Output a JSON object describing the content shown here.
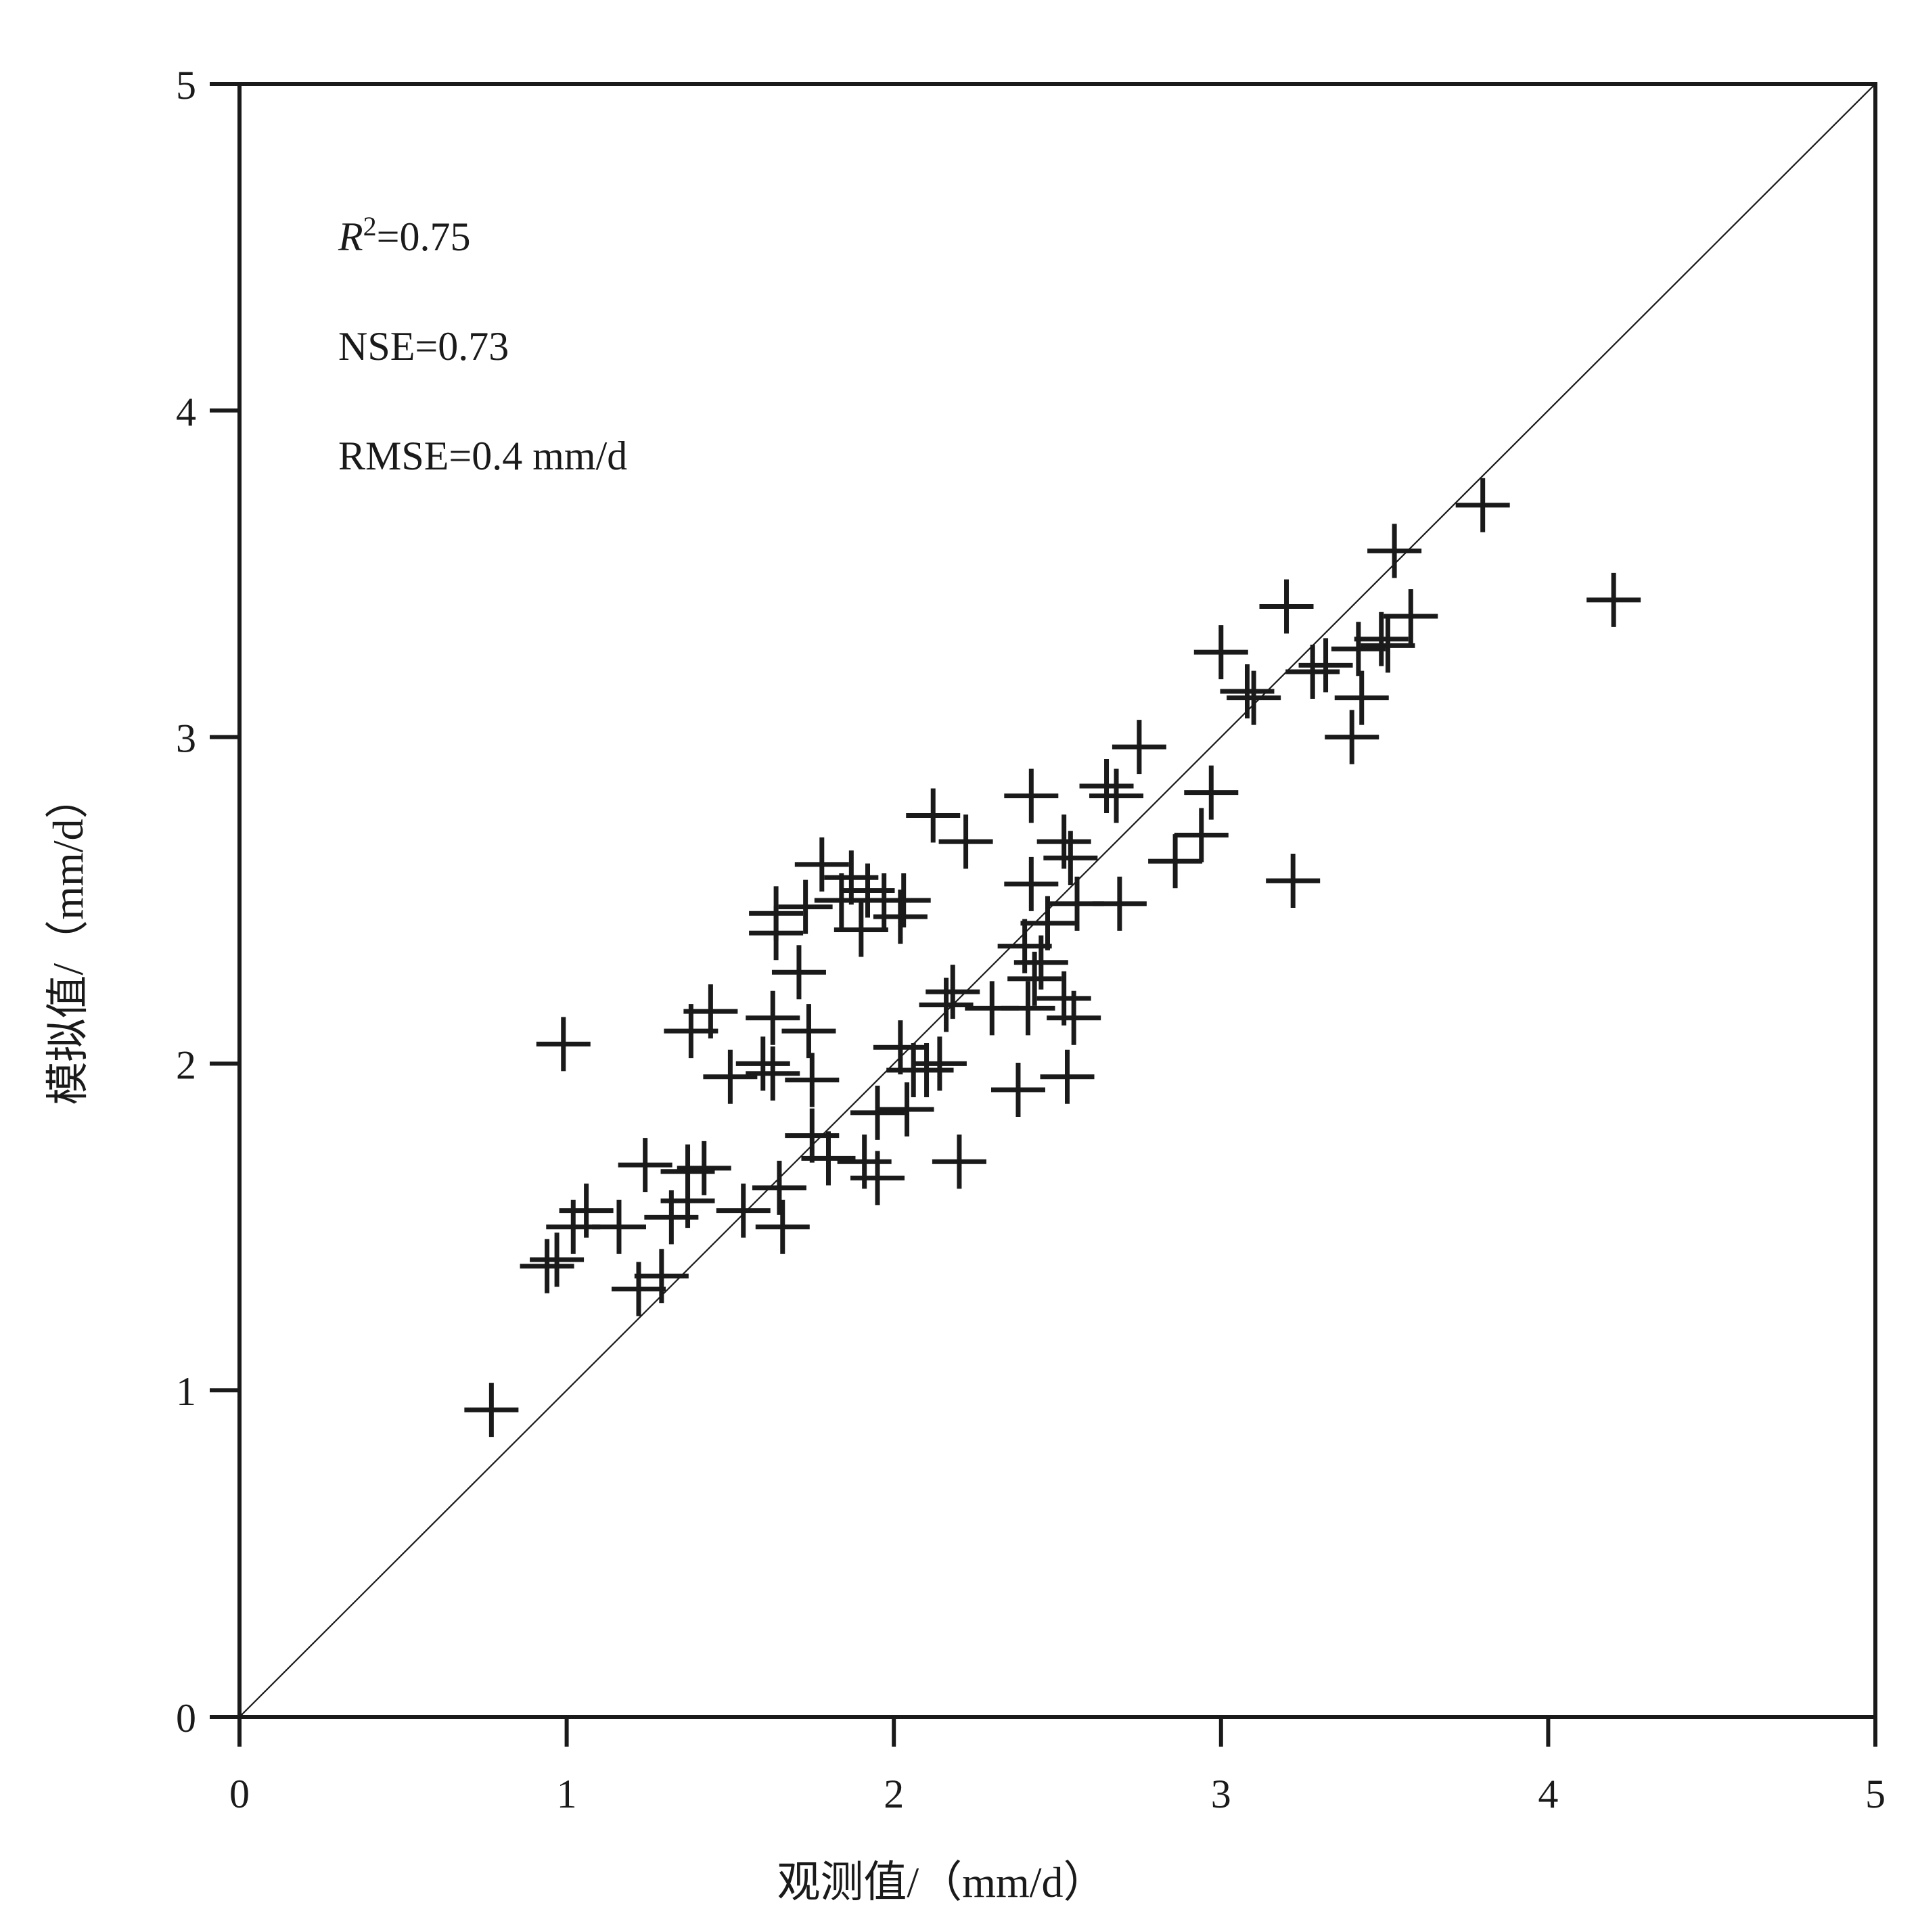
{
  "chart_data": {
    "type": "scatter",
    "xlabel": "观测值/（mm/d）",
    "ylabel": "模拟值/（mm/d）",
    "xlim": [
      0,
      5
    ],
    "ylim": [
      0,
      5
    ],
    "xticks": [
      "0",
      "1",
      "2",
      "3",
      "4",
      "5"
    ],
    "yticks": [
      "0",
      "1",
      "2",
      "3",
      "4",
      "5"
    ],
    "reference_line": "1:1",
    "grid": false,
    "marker": "plus",
    "colors": {
      "marker": "#1a1a1a",
      "axis": "#1a1a1a",
      "reference_line": "#1a1a1a"
    },
    "annotations": {
      "r2_symbol": "R",
      "r2_sup": "2",
      "r2_value": "=0.75",
      "nse": "NSE=0.73",
      "rmse": "RMSE=0.4 mm/d"
    },
    "points": [
      [
        0.77,
        0.94
      ],
      [
        0.94,
        1.38
      ],
      [
        0.97,
        1.4
      ],
      [
        0.99,
        2.06
      ],
      [
        1.02,
        1.5
      ],
      [
        1.06,
        1.55
      ],
      [
        1.16,
        1.5
      ],
      [
        1.22,
        1.31
      ],
      [
        1.24,
        1.69
      ],
      [
        1.29,
        1.35
      ],
      [
        1.32,
        1.53
      ],
      [
        1.37,
        1.58
      ],
      [
        1.37,
        1.67
      ],
      [
        1.38,
        2.1
      ],
      [
        1.42,
        1.68
      ],
      [
        1.44,
        2.16
      ],
      [
        1.5,
        1.96
      ],
      [
        1.54,
        1.55
      ],
      [
        1.6,
        2.0
      ],
      [
        1.63,
        1.97
      ],
      [
        1.63,
        2.14
      ],
      [
        1.64,
        2.4
      ],
      [
        1.64,
        2.46
      ],
      [
        1.65,
        1.62
      ],
      [
        1.66,
        1.5
      ],
      [
        1.71,
        2.28
      ],
      [
        1.73,
        2.48
      ],
      [
        1.74,
        2.1
      ],
      [
        1.75,
        1.95
      ],
      [
        1.75,
        1.78
      ],
      [
        1.78,
        2.61
      ],
      [
        1.8,
        1.71
      ],
      [
        1.84,
        2.5
      ],
      [
        1.87,
        2.57
      ],
      [
        1.9,
        2.41
      ],
      [
        1.91,
        1.7
      ],
      [
        1.92,
        2.53
      ],
      [
        1.95,
        1.85
      ],
      [
        1.95,
        1.65
      ],
      [
        1.97,
        2.5
      ],
      [
        2.02,
        2.45
      ],
      [
        2.02,
        2.05
      ],
      [
        2.03,
        2.5
      ],
      [
        2.04,
        1.86
      ],
      [
        2.06,
        1.98
      ],
      [
        2.1,
        1.98
      ],
      [
        2.12,
        2.76
      ],
      [
        2.14,
        2.0
      ],
      [
        2.16,
        2.18
      ],
      [
        2.18,
        2.22
      ],
      [
        2.2,
        1.7
      ],
      [
        2.22,
        2.68
      ],
      [
        2.3,
        2.17
      ],
      [
        2.38,
        1.92
      ],
      [
        2.4,
        2.36
      ],
      [
        2.41,
        2.17
      ],
      [
        2.42,
        2.55
      ],
      [
        2.42,
        2.82
      ],
      [
        2.43,
        2.26
      ],
      [
        2.45,
        2.31
      ],
      [
        2.47,
        2.43
      ],
      [
        2.52,
        2.68
      ],
      [
        2.52,
        2.2
      ],
      [
        2.53,
        1.96
      ],
      [
        2.54,
        2.63
      ],
      [
        2.55,
        2.14
      ],
      [
        2.56,
        2.49
      ],
      [
        2.65,
        2.85
      ],
      [
        2.68,
        2.82
      ],
      [
        2.69,
        2.49
      ],
      [
        2.75,
        2.97
      ],
      [
        2.86,
        2.62
      ],
      [
        2.94,
        2.7
      ],
      [
        2.97,
        2.83
      ],
      [
        3.0,
        3.26
      ],
      [
        3.08,
        3.14
      ],
      [
        3.1,
        3.12
      ],
      [
        3.2,
        3.4
      ],
      [
        3.22,
        2.56
      ],
      [
        3.28,
        3.2
      ],
      [
        3.32,
        3.22
      ],
      [
        3.4,
        3.0
      ],
      [
        3.42,
        3.27
      ],
      [
        3.43,
        3.12
      ],
      [
        3.49,
        3.3
      ],
      [
        3.51,
        3.28
      ],
      [
        3.53,
        3.57
      ],
      [
        3.58,
        3.37
      ],
      [
        3.8,
        3.71
      ],
      [
        4.2,
        3.42
      ]
    ]
  }
}
